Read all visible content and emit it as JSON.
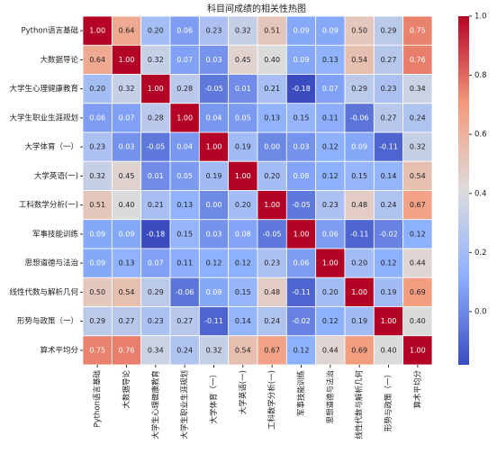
{
  "chart_data": {
    "type": "heatmap",
    "title": "科目间成绩的相关性热图",
    "categories": [
      "Python语言基础",
      "大数据导论",
      "大学生心理健康教育",
      "大学生职业生涯规划",
      "大学体育（一）",
      "大学英语(一)",
      "工科数学分析(一)",
      "军事技能训练",
      "思想道德与法治",
      "线性代数与解析几何",
      "形势与政策（一）",
      "算术平均分"
    ],
    "values": [
      [
        1,
        0.64,
        0.2,
        0.06,
        0.23,
        0.32,
        0.51,
        0.09,
        0.09,
        0.5,
        0.29,
        0.75
      ],
      [
        0.64,
        1,
        0.32,
        0.07,
        0.03,
        0.45,
        0.4,
        0.09,
        0.13,
        0.54,
        0.27,
        0.76
      ],
      [
        0.2,
        0.32,
        1,
        0.28,
        -0.05,
        0.01,
        0.21,
        -0.18,
        0.07,
        0.29,
        0.23,
        0.34
      ],
      [
        0.06,
        0.07,
        0.28,
        1,
        0.04,
        0.05,
        0.13,
        0.15,
        0.11,
        -0.06,
        0.27,
        0.24
      ],
      [
        0.23,
        0.03,
        -0.05,
        0.04,
        1,
        0.19,
        0,
        0.03,
        0.12,
        0.09,
        -0.11,
        0.32
      ],
      [
        0.32,
        0.45,
        0.01,
        0.05,
        0.19,
        1,
        0.2,
        0.08,
        0.12,
        0.15,
        0.14,
        0.54
      ],
      [
        0.51,
        0.4,
        0.21,
        0.13,
        0,
        0.2,
        1,
        -0.05,
        0.23,
        0.48,
        0.24,
        0.67
      ],
      [
        0.09,
        0.09,
        -0.18,
        0.15,
        0.03,
        0.08,
        -0.05,
        1,
        0.06,
        -0.11,
        -0.02,
        0.12
      ],
      [
        0.09,
        0.13,
        0.07,
        0.11,
        0.12,
        0.12,
        0.23,
        0.06,
        1,
        0.2,
        0.12,
        0.44
      ],
      [
        0.5,
        0.54,
        0.29,
        -0.06,
        0.09,
        0.15,
        0.48,
        -0.11,
        0.2,
        1,
        0.19,
        0.69
      ],
      [
        0.29,
        0.27,
        0.23,
        0.27,
        -0.11,
        0.14,
        0.24,
        -0.02,
        0.12,
        0.19,
        1,
        0.4
      ],
      [
        0.75,
        0.76,
        0.34,
        0.24,
        0.32,
        0.54,
        0.67,
        0.12,
        0.44,
        0.69,
        0.4,
        1
      ]
    ],
    "value_labels": [
      [
        "1.00",
        "0.64",
        "0.20",
        "0.06",
        "0.23",
        "0.32",
        "0.51",
        "0.09",
        "0.09",
        "0.50",
        "0.29",
        "0.75"
      ],
      [
        "0.64",
        "1.00",
        "0.32",
        "0.07",
        "0.03",
        "0.45",
        "0.40",
        "0.09",
        "0.13",
        "0.54",
        "0.27",
        "0.76"
      ],
      [
        "0.20",
        "0.32",
        "1.00",
        "0.28",
        "-0.05",
        "0.01",
        "0.21",
        "-0.18",
        "0.07",
        "0.29",
        "0.23",
        "0.34"
      ],
      [
        "0.06",
        "0.07",
        "0.28",
        "1.00",
        "0.04",
        "0.05",
        "0.13",
        "0.15",
        "0.11",
        "-0.06",
        "0.27",
        "0.24"
      ],
      [
        "0.23",
        "0.03",
        "-0.05",
        "0.04",
        "1.00",
        "0.19",
        "0.00",
        "0.03",
        "0.12",
        "0.09",
        "-0.11",
        "0.32"
      ],
      [
        "0.32",
        "0.45",
        "0.01",
        "0.05",
        "0.19",
        "1.00",
        "0.20",
        "0.08",
        "0.12",
        "0.15",
        "0.14",
        "0.54"
      ],
      [
        "0.51",
        "0.40",
        "0.21",
        "0.13",
        "0.00",
        "0.20",
        "1.00",
        "-0.05",
        "0.23",
        "0.48",
        "0.24",
        "0.67"
      ],
      [
        "0.09",
        "0.09",
        "-0.18",
        "0.15",
        "0.03",
        "0.08",
        "-0.05",
        "1.00",
        "0.06",
        "-0.11",
        "-0.02",
        "0.12"
      ],
      [
        "0.09",
        "0.13",
        "0.07",
        "0.11",
        "0.12",
        "0.12",
        "0.23",
        "0.06",
        "1.00",
        "0.20",
        "0.12",
        "0.44"
      ],
      [
        "0.50",
        "0.54",
        "0.29",
        "-0.06",
        "0.09",
        "0.15",
        "0.48",
        "-0.11",
        "0.20",
        "1.00",
        "0.19",
        "0.69"
      ],
      [
        "0.29",
        "0.27",
        "0.23",
        "0.27",
        "-0.11",
        "0.14",
        "0.24",
        "-0.02",
        "0.12",
        "0.19",
        "1.00",
        "0.40"
      ],
      [
        "0.75",
        "0.76",
        "0.34",
        "0.24",
        "0.32",
        "0.54",
        "0.67",
        "0.12",
        "0.44",
        "0.69",
        "0.40",
        "1.00"
      ]
    ],
    "colormap": [
      "#3b4cc0",
      "#8db0fe",
      "#dddcdc",
      "#f49a7b",
      "#b40426"
    ],
    "clim": [
      -0.18,
      1
    ],
    "cticks": [
      {
        "value": 0,
        "label": "0.0"
      },
      0.2,
      0.4,
      0.6,
      0.8,
      {
        "value": 1,
        "label": "1.0"
      }
    ]
  }
}
